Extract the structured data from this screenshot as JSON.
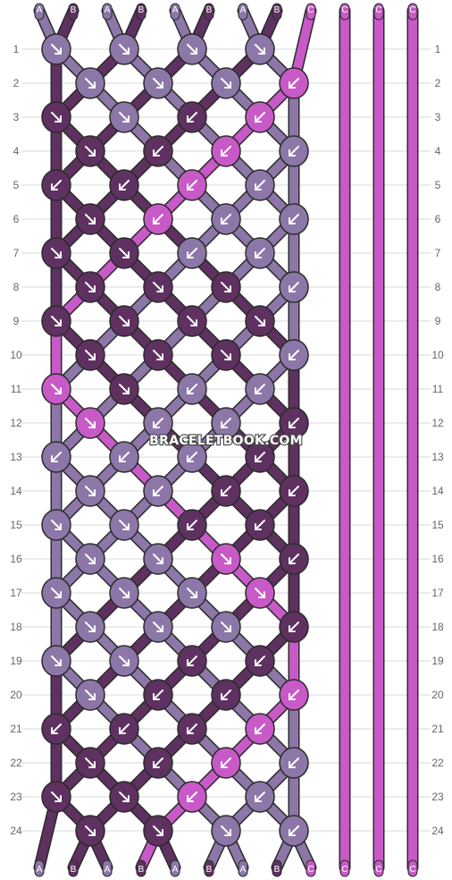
{
  "colors": {
    "A": "#8c77a8",
    "B": "#5e3160",
    "C": "#c85ac8"
  },
  "strings_top": [
    "A",
    "B",
    "A",
    "B",
    "A",
    "B",
    "A",
    "B",
    "C",
    "C",
    "C",
    "C"
  ],
  "strings_bottom": [
    "A",
    "B",
    "A",
    "B",
    "A",
    "B",
    "A",
    "B",
    "C",
    "C",
    "C",
    "C"
  ],
  "row_numbers": [
    "1",
    "2",
    "3",
    "4",
    "5",
    "6",
    "7",
    "8",
    "9",
    "10",
    "11",
    "12",
    "13",
    "14",
    "15",
    "16",
    "17",
    "18",
    "19",
    "20",
    "21",
    "22",
    "23",
    "24"
  ],
  "watermark": "BRACELETBOOK.COM",
  "knots": [
    {
      "row": 1,
      "pos": 0,
      "dir": "right"
    },
    {
      "row": 1,
      "pos": 1,
      "dir": "right"
    },
    {
      "row": 1,
      "pos": 2,
      "dir": "right"
    },
    {
      "row": 1,
      "pos": 3,
      "dir": "right"
    },
    {
      "row": 2,
      "pos": 0,
      "dir": "right"
    },
    {
      "row": 2,
      "pos": 1,
      "dir": "right"
    },
    {
      "row": 2,
      "pos": 2,
      "dir": "right"
    },
    {
      "row": 2,
      "pos": 3,
      "dir": "left"
    },
    {
      "row": 3,
      "pos": 0,
      "dir": "right"
    },
    {
      "row": 3,
      "pos": 1,
      "dir": "right"
    },
    {
      "row": 3,
      "pos": 2,
      "dir": "left"
    },
    {
      "row": 3,
      "pos": 3,
      "dir": "left"
    },
    {
      "row": 4,
      "pos": 0,
      "dir": "right"
    },
    {
      "row": 4,
      "pos": 1,
      "dir": "left"
    },
    {
      "row": 4,
      "pos": 2,
      "dir": "left"
    },
    {
      "row": 4,
      "pos": 3,
      "dir": "left"
    },
    {
      "row": 5,
      "pos": 0,
      "dir": "left"
    },
    {
      "row": 5,
      "pos": 1,
      "dir": "left"
    },
    {
      "row": 5,
      "pos": 2,
      "dir": "left"
    },
    {
      "row": 5,
      "pos": 3,
      "dir": "left"
    },
    {
      "row": 6,
      "pos": 0,
      "dir": "right"
    },
    {
      "row": 6,
      "pos": 1,
      "dir": "left"
    },
    {
      "row": 6,
      "pos": 2,
      "dir": "left"
    },
    {
      "row": 6,
      "pos": 3,
      "dir": "left"
    },
    {
      "row": 7,
      "pos": 0,
      "dir": "right"
    },
    {
      "row": 7,
      "pos": 1,
      "dir": "right"
    },
    {
      "row": 7,
      "pos": 2,
      "dir": "left"
    },
    {
      "row": 7,
      "pos": 3,
      "dir": "left"
    },
    {
      "row": 8,
      "pos": 0,
      "dir": "right"
    },
    {
      "row": 8,
      "pos": 1,
      "dir": "right"
    },
    {
      "row": 8,
      "pos": 2,
      "dir": "right"
    },
    {
      "row": 8,
      "pos": 3,
      "dir": "left"
    },
    {
      "row": 9,
      "pos": 0,
      "dir": "right"
    },
    {
      "row": 9,
      "pos": 1,
      "dir": "right"
    },
    {
      "row": 9,
      "pos": 2,
      "dir": "right"
    },
    {
      "row": 9,
      "pos": 3,
      "dir": "right"
    },
    {
      "row": 10,
      "pos": 0,
      "dir": "right"
    },
    {
      "row": 10,
      "pos": 1,
      "dir": "right"
    },
    {
      "row": 10,
      "pos": 2,
      "dir": "right"
    },
    {
      "row": 10,
      "pos": 3,
      "dir": "left"
    },
    {
      "row": 11,
      "pos": 0,
      "dir": "right"
    },
    {
      "row": 11,
      "pos": 1,
      "dir": "right"
    },
    {
      "row": 11,
      "pos": 2,
      "dir": "left"
    },
    {
      "row": 11,
      "pos": 3,
      "dir": "left"
    },
    {
      "row": 12,
      "pos": 0,
      "dir": "right"
    },
    {
      "row": 12,
      "pos": 1,
      "dir": "left"
    },
    {
      "row": 12,
      "pos": 2,
      "dir": "left"
    },
    {
      "row": 12,
      "pos": 3,
      "dir": "left"
    },
    {
      "row": 13,
      "pos": 0,
      "dir": "left"
    },
    {
      "row": 13,
      "pos": 1,
      "dir": "left"
    },
    {
      "row": 13,
      "pos": 2,
      "dir": "left"
    },
    {
      "row": 13,
      "pos": 3,
      "dir": "left"
    },
    {
      "row": 14,
      "pos": 0,
      "dir": "right"
    },
    {
      "row": 14,
      "pos": 1,
      "dir": "left"
    },
    {
      "row": 14,
      "pos": 2,
      "dir": "left"
    },
    {
      "row": 14,
      "pos": 3,
      "dir": "left"
    },
    {
      "row": 15,
      "pos": 0,
      "dir": "right"
    },
    {
      "row": 15,
      "pos": 1,
      "dir": "right"
    },
    {
      "row": 15,
      "pos": 2,
      "dir": "left"
    },
    {
      "row": 15,
      "pos": 3,
      "dir": "left"
    },
    {
      "row": 16,
      "pos": 0,
      "dir": "right"
    },
    {
      "row": 16,
      "pos": 1,
      "dir": "right"
    },
    {
      "row": 16,
      "pos": 2,
      "dir": "right"
    },
    {
      "row": 16,
      "pos": 3,
      "dir": "left"
    },
    {
      "row": 17,
      "pos": 0,
      "dir": "right"
    },
    {
      "row": 17,
      "pos": 1,
      "dir": "right"
    },
    {
      "row": 17,
      "pos": 2,
      "dir": "right"
    },
    {
      "row": 17,
      "pos": 3,
      "dir": "right"
    },
    {
      "row": 18,
      "pos": 0,
      "dir": "right"
    },
    {
      "row": 18,
      "pos": 1,
      "dir": "right"
    },
    {
      "row": 18,
      "pos": 2,
      "dir": "right"
    },
    {
      "row": 18,
      "pos": 3,
      "dir": "left"
    },
    {
      "row": 19,
      "pos": 0,
      "dir": "right"
    },
    {
      "row": 19,
      "pos": 1,
      "dir": "right"
    },
    {
      "row": 19,
      "pos": 2,
      "dir": "left"
    },
    {
      "row": 19,
      "pos": 3,
      "dir": "left"
    },
    {
      "row": 20,
      "pos": 0,
      "dir": "right"
    },
    {
      "row": 20,
      "pos": 1,
      "dir": "left"
    },
    {
      "row": 20,
      "pos": 2,
      "dir": "left"
    },
    {
      "row": 20,
      "pos": 3,
      "dir": "left"
    },
    {
      "row": 21,
      "pos": 0,
      "dir": "left"
    },
    {
      "row": 21,
      "pos": 1,
      "dir": "left"
    },
    {
      "row": 21,
      "pos": 2,
      "dir": "left"
    },
    {
      "row": 21,
      "pos": 3,
      "dir": "left"
    },
    {
      "row": 22,
      "pos": 0,
      "dir": "right"
    },
    {
      "row": 22,
      "pos": 1,
      "dir": "left"
    },
    {
      "row": 22,
      "pos": 2,
      "dir": "left"
    },
    {
      "row": 22,
      "pos": 3,
      "dir": "left"
    },
    {
      "row": 23,
      "pos": 0,
      "dir": "right"
    },
    {
      "row": 23,
      "pos": 1,
      "dir": "right"
    },
    {
      "row": 23,
      "pos": 2,
      "dir": "left"
    },
    {
      "row": 23,
      "pos": 3,
      "dir": "left"
    },
    {
      "row": 24,
      "pos": 0,
      "dir": "right"
    },
    {
      "row": 24,
      "pos": 1,
      "dir": "right"
    },
    {
      "row": 24,
      "pos": 2,
      "dir": "right"
    },
    {
      "row": 24,
      "pos": 3,
      "dir": "left"
    }
  ]
}
